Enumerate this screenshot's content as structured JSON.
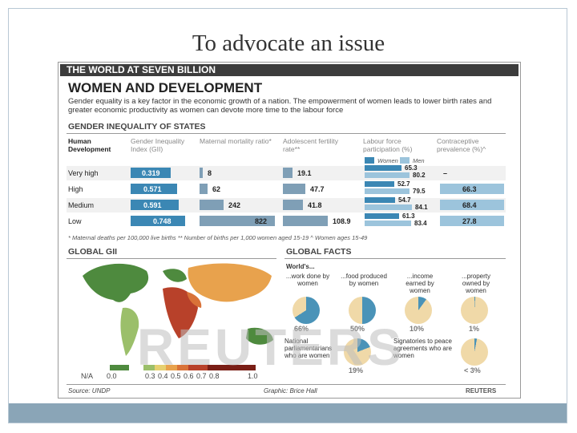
{
  "slide": {
    "title": "To advocate an issue"
  },
  "graphic": {
    "banner": "THE WORLD AT SEVEN BILLION",
    "headline": "WOMEN AND DEVELOPMENT",
    "intro": "Gender equality is a key factor in the economic growth of a nation. The empowerment of women leads to lower birth rates and greater economic productivity as women can devote more time to the labour force",
    "inequality": {
      "section_title": "GENDER INEQUALITY OF STATES",
      "columns": [
        "Human Development",
        "Gender Inequality Index (GII)",
        "Maternal mortality ratio*",
        "Adolescent fertility rate**",
        "Labour force participation (%)",
        "Contraceptive prevalence (%)^"
      ],
      "legend_women": "Women",
      "legend_men": "Men",
      "rows": [
        {
          "label": "Very high",
          "gii": "0.319",
          "maternal": "8",
          "adolescent": "19.1",
          "labour_women": "65.3",
          "labour_men": "80.2",
          "contraceptive": "–"
        },
        {
          "label": "High",
          "gii": "0.571",
          "maternal": "62",
          "adolescent": "47.7",
          "labour_women": "52.7",
          "labour_men": "79.5",
          "contraceptive": "66.3"
        },
        {
          "label": "Medium",
          "gii": "0.591",
          "maternal": "242",
          "adolescent": "41.8",
          "labour_women": "54.7",
          "labour_men": "84.1",
          "contraceptive": "68.4"
        },
        {
          "label": "Low",
          "gii": "0.748",
          "maternal": "822",
          "adolescent": "108.9",
          "labour_women": "61.3",
          "labour_men": "83.4",
          "contraceptive": "27.8"
        }
      ],
      "footnotes": "* Maternal deaths per 100,000 live births   ** Number of births per 1,000 women aged 15-19   ^ Women ages 15-49"
    },
    "map": {
      "title": "GLOBAL GII",
      "scale_labels": [
        "N/A",
        "0.0",
        "0.3",
        "0.4",
        "0.5",
        "0.6",
        "0.7",
        "0.8",
        "1.0"
      ],
      "scale_colors": [
        "#cccccc",
        "#4e8a3e",
        "#9bbf6a",
        "#e6d070",
        "#e8a24d",
        "#d97238",
        "#b8412a",
        "#7a1e16"
      ]
    },
    "facts": {
      "title": "GLOBAL FACTS",
      "worlds": "World's...",
      "items": [
        {
          "label": "...work done by women",
          "value": "66%",
          "percent": 66
        },
        {
          "label": "...food produced by women",
          "value": "50%",
          "percent": 50
        },
        {
          "label": "...income earned by women",
          "value": "10%",
          "percent": 10
        },
        {
          "label": "...property owned by women",
          "value": "1%",
          "percent": 1
        },
        {
          "label": "National parliamentarians who are women",
          "value": "19%",
          "percent": 19
        },
        {
          "label": "Signatories to peace agreements who are women",
          "value": "< 3%",
          "percent": 3
        }
      ]
    },
    "source": "Source: UNDP",
    "credit": "Graphic: Brice Hall",
    "brand": "REUTERS",
    "watermark": "REUTERS",
    "colors": {
      "bar": "#3b87b4",
      "bar_light": "#9cc4dc",
      "pie_fill": "#f0d9a8",
      "pie_slice": "#4a93b8"
    }
  }
}
